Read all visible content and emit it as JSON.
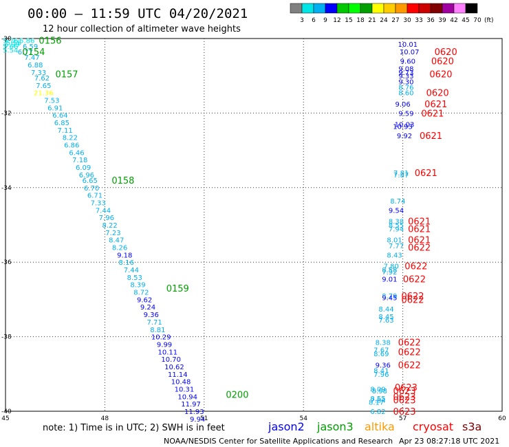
{
  "header": {
    "title": "00:00 – 11:59 UTC 04/20/2021",
    "subtitle": "12 hour collection of altimeter wave heights"
  },
  "footer": {
    "note": "note: 1) Time is in UTC; 2) SWH is in feet",
    "credit": "NOAA/NESDIS Center for Satellite Applications and Research",
    "timestamp": "Apr 23 08:27:18 UTC 2021"
  },
  "legend": {
    "ticks": [
      "3",
      "6",
      "9",
      "12",
      "15",
      "18",
      "21",
      "24",
      "27",
      "30",
      "33",
      "36",
      "39",
      "42",
      "45",
      "70"
    ],
    "unit": "(ft)",
    "colors": [
      "#808080",
      "#00e5e5",
      "#00b0f0",
      "#0000ff",
      "#00c800",
      "#00ff00",
      "#00a000",
      "#ffff00",
      "#ffcc00",
      "#ff9900",
      "#ff0000",
      "#cc0000",
      "#800000",
      "#a000a0",
      "#ff80ff",
      "#000000"
    ]
  },
  "satellites": [
    {
      "name": "jason2",
      "color": "#0000ff"
    },
    {
      "name": "jason3",
      "color": "#00a000"
    },
    {
      "name": "altika",
      "color": "#ff9900"
    },
    {
      "name": "cryosat",
      "color": "#ff0000"
    },
    {
      "name": "s3a",
      "color": "#800000"
    }
  ],
  "chart_data": {
    "type": "scatter",
    "xlim": [
      45,
      60
    ],
    "ylim": [
      -40,
      -30
    ],
    "x_ticks": [
      "45",
      "48",
      "51",
      "54",
      "57",
      "60"
    ],
    "y_ticks": [
      "-30",
      "-32",
      "-34",
      "-36",
      "-38",
      "-40"
    ],
    "grid": true,
    "series": [
      {
        "name": "jason3",
        "color_by_value": true,
        "points": [
          {
            "x": 45.15,
            "y": -30.05,
            "v": "5.76"
          },
          {
            "x": 45.25,
            "y": -30.1,
            "v": "5.58"
          },
          {
            "x": 45.2,
            "y": -30.15,
            "v": "5.99"
          },
          {
            "x": 45.15,
            "y": -30.2,
            "v": "5.66"
          },
          {
            "x": 45.15,
            "y": -30.3,
            "v": "5.54"
          },
          {
            "x": 45.65,
            "y": -30.05,
            "v": "5.86"
          },
          {
            "x": 45.75,
            "y": -30.2,
            "v": "6.59"
          },
          {
            "x": 45.6,
            "y": -30.35,
            "v": "6.77"
          },
          {
            "x": 45.8,
            "y": -30.5,
            "v": "7.47"
          },
          {
            "x": 45.9,
            "y": -30.7,
            "v": "6.88"
          },
          {
            "x": 46.0,
            "y": -30.9,
            "v": "7.33"
          },
          {
            "x": 46.1,
            "y": -31.05,
            "v": "7.62"
          },
          {
            "x": 46.15,
            "y": -31.25,
            "v": "7.65"
          },
          {
            "x": 46.15,
            "y": -31.45,
            "v": "21.36"
          },
          {
            "x": 46.4,
            "y": -31.65,
            "v": "7.53"
          },
          {
            "x": 46.5,
            "y": -31.85,
            "v": "6.91"
          },
          {
            "x": 46.65,
            "y": -32.05,
            "v": "6.64"
          },
          {
            "x": 46.7,
            "y": -32.25,
            "v": "6.85"
          },
          {
            "x": 46.8,
            "y": -32.45,
            "v": "7.11"
          },
          {
            "x": 46.95,
            "y": -32.65,
            "v": "8.22"
          },
          {
            "x": 47.0,
            "y": -32.85,
            "v": "6.86"
          },
          {
            "x": 47.15,
            "y": -33.05,
            "v": "6.46"
          },
          {
            "x": 47.25,
            "y": -33.25,
            "v": "7.18"
          },
          {
            "x": 47.35,
            "y": -33.45,
            "v": "6.09"
          },
          {
            "x": 47.45,
            "y": -33.65,
            "v": "6.96"
          },
          {
            "x": 47.55,
            "y": -33.8,
            "v": "6.65"
          },
          {
            "x": 47.6,
            "y": -34.0,
            "v": "6.70"
          },
          {
            "x": 47.7,
            "y": -34.2,
            "v": "6.71"
          },
          {
            "x": 47.8,
            "y": -34.4,
            "v": "7.33"
          },
          {
            "x": 47.95,
            "y": -34.6,
            "v": "7.44"
          },
          {
            "x": 48.05,
            "y": -34.8,
            "v": "7.96"
          },
          {
            "x": 48.15,
            "y": -35.0,
            "v": "8.22"
          },
          {
            "x": 48.25,
            "y": -35.2,
            "v": "7.23"
          },
          {
            "x": 48.35,
            "y": -35.4,
            "v": "8.47"
          },
          {
            "x": 48.45,
            "y": -35.6,
            "v": "8.26"
          },
          {
            "x": 48.6,
            "y": -35.8,
            "v": "9.18"
          },
          {
            "x": 48.65,
            "y": -36.0,
            "v": "8.16"
          },
          {
            "x": 48.8,
            "y": -36.2,
            "v": "7.44"
          },
          {
            "x": 48.9,
            "y": -36.4,
            "v": "8.53"
          },
          {
            "x": 49.0,
            "y": -36.6,
            "v": "8.39"
          },
          {
            "x": 49.1,
            "y": -36.8,
            "v": "8.72"
          },
          {
            "x": 49.2,
            "y": -37.0,
            "v": "9.62"
          },
          {
            "x": 49.3,
            "y": -37.2,
            "v": "9.24"
          },
          {
            "x": 49.4,
            "y": -37.4,
            "v": "9.36"
          },
          {
            "x": 49.5,
            "y": -37.6,
            "v": "7.71"
          },
          {
            "x": 49.6,
            "y": -37.8,
            "v": "8.81"
          },
          {
            "x": 49.7,
            "y": -38.0,
            "v": "10.29"
          },
          {
            "x": 49.8,
            "y": -38.2,
            "v": "9.99"
          },
          {
            "x": 49.9,
            "y": -38.4,
            "v": "10.11"
          },
          {
            "x": 50.0,
            "y": -38.6,
            "v": "10.70"
          },
          {
            "x": 50.1,
            "y": -38.8,
            "v": "10.62"
          },
          {
            "x": 50.2,
            "y": -39.0,
            "v": "11.14"
          },
          {
            "x": 50.3,
            "y": -39.2,
            "v": "10.48"
          },
          {
            "x": 50.4,
            "y": -39.4,
            "v": "10.31"
          },
          {
            "x": 50.5,
            "y": -39.6,
            "v": "10.94"
          },
          {
            "x": 50.6,
            "y": -39.8,
            "v": "11.97"
          },
          {
            "x": 50.7,
            "y": -40.0,
            "v": "11.93"
          },
          {
            "x": 50.8,
            "y": -40.2,
            "v": "9.94"
          }
        ],
        "times": [
          {
            "x": 46.35,
            "y": -30.05,
            "t": "0156"
          },
          {
            "x": 45.85,
            "y": -30.35,
            "t": "0154"
          },
          {
            "x": 46.85,
            "y": -30.95,
            "t": "0157"
          },
          {
            "x": 48.55,
            "y": -33.8,
            "t": "0158"
          },
          {
            "x": 50.2,
            "y": -36.7,
            "t": "0159"
          },
          {
            "x": 52.0,
            "y": -39.55,
            "t": "0200"
          }
        ]
      },
      {
        "name": "cryosat",
        "color_by_value": true,
        "points": [
          {
            "x": 57.15,
            "y": -30.15,
            "v": "10.01"
          },
          {
            "x": 57.2,
            "y": -30.35,
            "v": "10.07"
          },
          {
            "x": 57.15,
            "y": -30.6,
            "v": "9.60"
          },
          {
            "x": 57.1,
            "y": -30.8,
            "v": "9.08"
          },
          {
            "x": 57.1,
            "y": -30.9,
            "v": "9.73"
          },
          {
            "x": 57.1,
            "y": -31.0,
            "v": "9.33"
          },
          {
            "x": 57.1,
            "y": -31.15,
            "v": "9.30"
          },
          {
            "x": 57.1,
            "y": -31.3,
            "v": "8.76"
          },
          {
            "x": 57.1,
            "y": -31.45,
            "v": "8.60"
          },
          {
            "x": 57.0,
            "y": -31.75,
            "v": "9.06"
          },
          {
            "x": 57.1,
            "y": -32.0,
            "v": "9.59"
          },
          {
            "x": 57.05,
            "y": -32.3,
            "v": "10.03"
          },
          {
            "x": 57.0,
            "y": -32.35,
            "v": "10.93"
          },
          {
            "x": 57.05,
            "y": -32.6,
            "v": "9.92"
          },
          {
            "x": 56.95,
            "y": -33.6,
            "v": "7.81"
          },
          {
            "x": 56.95,
            "y": -33.65,
            "v": "7.87"
          },
          {
            "x": 56.85,
            "y": -34.35,
            "v": "8.74"
          },
          {
            "x": 56.8,
            "y": -34.6,
            "v": "9.54"
          },
          {
            "x": 56.8,
            "y": -34.9,
            "v": "8.38"
          },
          {
            "x": 56.8,
            "y": -35.0,
            "v": "8.55"
          },
          {
            "x": 56.8,
            "y": -35.1,
            "v": "7.94"
          },
          {
            "x": 56.75,
            "y": -35.4,
            "v": "8.01"
          },
          {
            "x": 56.8,
            "y": -35.55,
            "v": "7.77"
          },
          {
            "x": 56.75,
            "y": -35.8,
            "v": "8.43"
          },
          {
            "x": 56.65,
            "y": -36.1,
            "v": "7.80"
          },
          {
            "x": 56.6,
            "y": -36.2,
            "v": "8.58"
          },
          {
            "x": 56.6,
            "y": -36.25,
            "v": "7.92"
          },
          {
            "x": 56.6,
            "y": -36.45,
            "v": "9.01"
          },
          {
            "x": 56.6,
            "y": -36.9,
            "v": "8.79"
          },
          {
            "x": 56.6,
            "y": -36.95,
            "v": "9.45"
          },
          {
            "x": 56.5,
            "y": -37.25,
            "v": "8.44"
          },
          {
            "x": 56.5,
            "y": -37.45,
            "v": "8.45"
          },
          {
            "x": 56.5,
            "y": -37.55,
            "v": "7.63"
          },
          {
            "x": 56.4,
            "y": -38.15,
            "v": "8.38"
          },
          {
            "x": 56.35,
            "y": -38.35,
            "v": "7.67"
          },
          {
            "x": 56.35,
            "y": -38.45,
            "v": "8.69"
          },
          {
            "x": 56.4,
            "y": -38.75,
            "v": "9.36"
          },
          {
            "x": 56.35,
            "y": -38.9,
            "v": "8.41"
          },
          {
            "x": 56.35,
            "y": -39.0,
            "v": "7.96"
          },
          {
            "x": 56.25,
            "y": -39.4,
            "v": "8.09"
          },
          {
            "x": 56.3,
            "y": -39.45,
            "v": "8.98"
          },
          {
            "x": 56.25,
            "y": -39.65,
            "v": "8.55"
          },
          {
            "x": 56.25,
            "y": -39.7,
            "v": "7.84"
          },
          {
            "x": 56.2,
            "y": -39.75,
            "v": "8.17"
          },
          {
            "x": 56.25,
            "y": -40.0,
            "v": "6.82"
          }
        ],
        "times": [
          {
            "x": 58.3,
            "y": -30.35,
            "t": "0620"
          },
          {
            "x": 58.2,
            "y": -30.6,
            "t": "0620"
          },
          {
            "x": 58.15,
            "y": -30.95,
            "t": "0620"
          },
          {
            "x": 58.05,
            "y": -31.45,
            "t": "0620"
          },
          {
            "x": 58.0,
            "y": -31.75,
            "t": "0621"
          },
          {
            "x": 57.9,
            "y": -32.0,
            "t": "0621"
          },
          {
            "x": 57.85,
            "y": -32.6,
            "t": "0621"
          },
          {
            "x": 57.7,
            "y": -33.6,
            "t": "0621"
          },
          {
            "x": 57.5,
            "y": -34.9,
            "t": "0621"
          },
          {
            "x": 57.5,
            "y": -35.1,
            "t": "0621"
          },
          {
            "x": 57.5,
            "y": -35.4,
            "t": "0621"
          },
          {
            "x": 57.5,
            "y": -35.6,
            "t": "0622"
          },
          {
            "x": 57.4,
            "y": -36.1,
            "t": "0622"
          },
          {
            "x": 57.35,
            "y": -36.45,
            "t": "0622"
          },
          {
            "x": 57.3,
            "y": -36.9,
            "t": "0622"
          },
          {
            "x": 57.3,
            "y": -37.0,
            "t": "0622"
          },
          {
            "x": 57.2,
            "y": -38.15,
            "t": "0622"
          },
          {
            "x": 57.2,
            "y": -38.4,
            "t": "0622"
          },
          {
            "x": 57.2,
            "y": -38.75,
            "t": "0622"
          },
          {
            "x": 57.1,
            "y": -39.35,
            "t": "0623"
          },
          {
            "x": 57.05,
            "y": -39.45,
            "t": "0623"
          },
          {
            "x": 57.05,
            "y": -39.6,
            "t": "0623"
          },
          {
            "x": 57.05,
            "y": -39.7,
            "t": "0623"
          },
          {
            "x": 57.05,
            "y": -40.0,
            "t": "0623"
          }
        ]
      }
    ]
  }
}
